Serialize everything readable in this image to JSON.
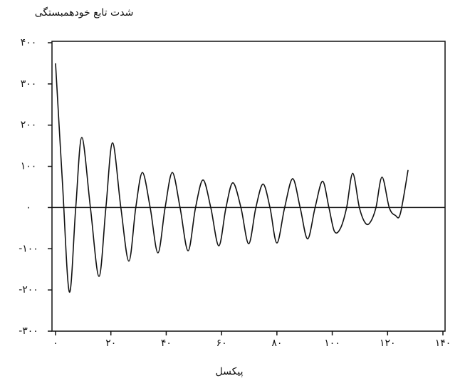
{
  "chart_data": {
    "type": "line",
    "title": "شدت تابع خودهمبستگی",
    "x_label": "پیکسل",
    "color": "#111111",
    "x": [
      0,
      2.5,
      5,
      7.3,
      9.5,
      12.6,
      15.7,
      18.2,
      20.6,
      23.6,
      26.5,
      29,
      31.4,
      34.2,
      37,
      39.6,
      42.2,
      45,
      47.9,
      50.6,
      53.3,
      56.1,
      59,
      61.6,
      64.1,
      67,
      69.8,
      72.4,
      75,
      77.5,
      80,
      82.8,
      85.7,
      88.4,
      91.1,
      93.8,
      96.5,
      98.8,
      100.8,
      103,
      105.2,
      107.4,
      109.8,
      112,
      113.8,
      115.8,
      118,
      120.6,
      122.8,
      124.6,
      127.4
    ],
    "values": [
      350,
      60,
      -205,
      0,
      170,
      0,
      -167,
      0,
      157,
      0,
      -130,
      0,
      85,
      0,
      -110,
      0,
      85,
      0,
      -105,
      0,
      67,
      0,
      -93,
      0,
      60,
      0,
      -88,
      0,
      57,
      0,
      -86,
      0,
      70,
      0,
      -76,
      0,
      64,
      0,
      -58,
      -50,
      0,
      83,
      0,
      -38,
      -35,
      0,
      74,
      0,
      -19,
      -15,
      91
    ],
    "xlim": [
      0,
      140
    ],
    "xticks": [
      {
        "value": 0,
        "label": "۰"
      },
      {
        "value": 20,
        "label": "۲۰"
      },
      {
        "value": 40,
        "label": "۴۰"
      },
      {
        "value": 60,
        "label": "۶۰"
      },
      {
        "value": 80,
        "label": "۸۰"
      },
      {
        "value": 100,
        "label": "۱۰۰"
      },
      {
        "value": 120,
        "label": "۱۲۰"
      },
      {
        "value": 140,
        "label": "۱۴۰"
      }
    ],
    "ylim": [
      -300,
      400
    ],
    "yticks": [
      {
        "value": 400,
        "label": "۴۰۰"
      },
      {
        "value": 300,
        "label": "۳۰۰"
      },
      {
        "value": 200,
        "label": "۲۰۰"
      },
      {
        "value": 100,
        "label": "۱۰۰"
      },
      {
        "value": 0,
        "label": "۰"
      },
      {
        "value": -100,
        "label": "-۱۰۰"
      },
      {
        "value": -200,
        "label": "-۲۰۰"
      },
      {
        "value": -300,
        "label": "-۳۰۰"
      }
    ]
  }
}
